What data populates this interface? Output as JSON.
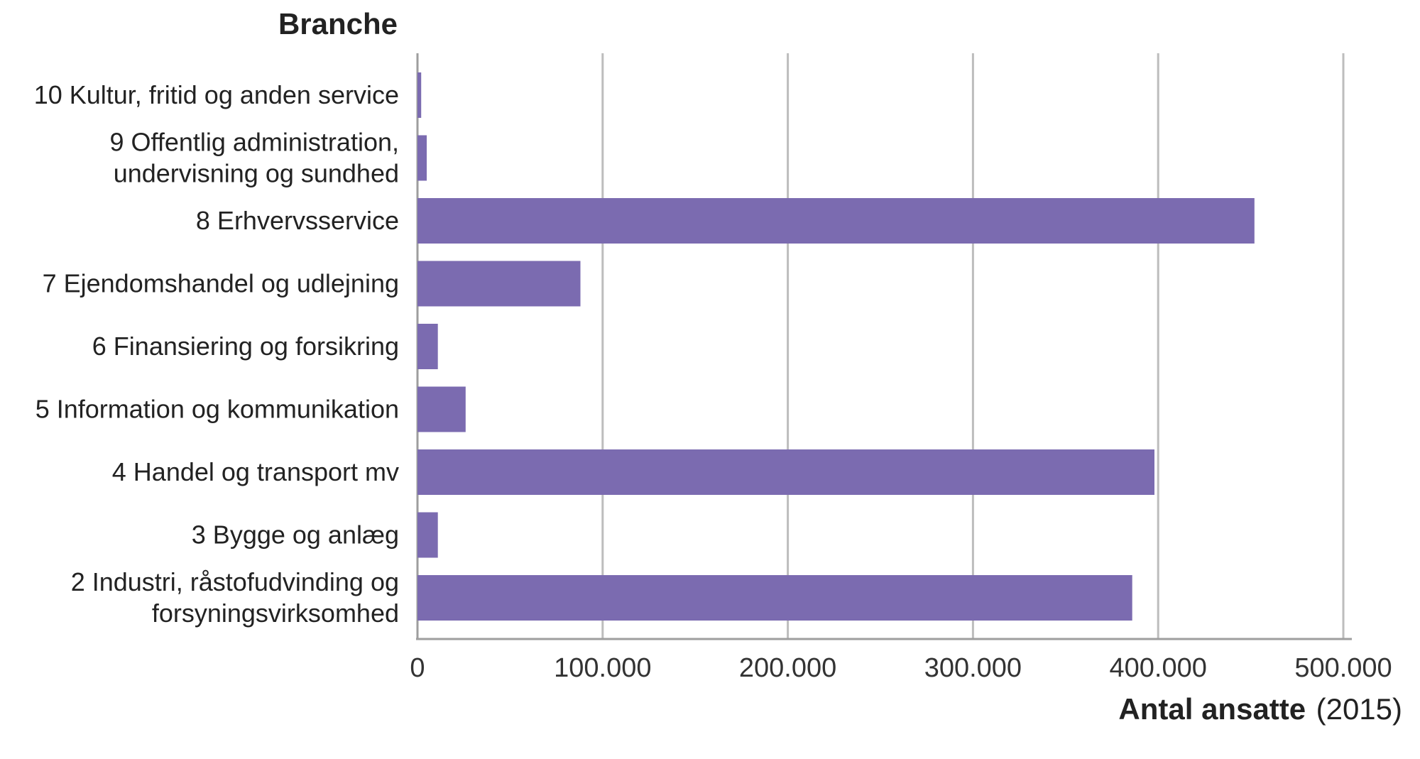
{
  "chart_data": {
    "type": "bar",
    "orientation": "horizontal",
    "ylabel": "Branche",
    "xlabel_bold": "Antal ansatte",
    "xlabel_suffix": "(2015)",
    "categories": [
      [
        "10 Kultur, fritid og anden service"
      ],
      [
        "9 Offentlig administration,",
        "undervisning og sundhed"
      ],
      [
        "8 Erhvervsservice"
      ],
      [
        "7 Ejendomshandel og udlejning"
      ],
      [
        "6 Finansiering og forsikring"
      ],
      [
        "5 Information og kommunikation"
      ],
      [
        "4 Handel og transport mv"
      ],
      [
        "3 Bygge og anlæg"
      ],
      [
        "2 Industri, råstofudvinding og",
        "forsyningsvirksomhed"
      ]
    ],
    "values": [
      2000,
      5000,
      452000,
      88000,
      11000,
      26000,
      398000,
      11000,
      386000
    ],
    "xlim": [
      0,
      500000
    ],
    "xticks": [
      0,
      100000,
      200000,
      300000,
      400000,
      500000
    ],
    "xtick_labels": [
      "0",
      "100.000",
      "200.000",
      "300.000",
      "400.000",
      "500.000"
    ],
    "grid": true,
    "bar_color": "#7b6bb0",
    "grid_color": "#bdbdbd"
  }
}
